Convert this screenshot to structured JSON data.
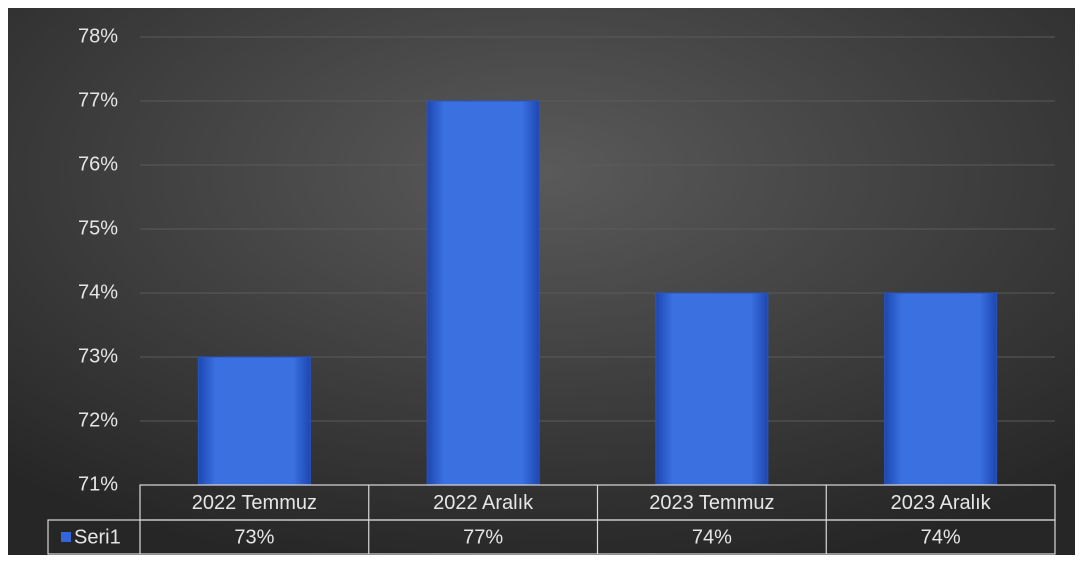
{
  "chart_data": {
    "type": "bar",
    "categories": [
      "2022 Temmuz",
      "2022 Aralık",
      "2023 Temmuz",
      "2023 Aralık"
    ],
    "series": [
      {
        "name": "Seri1",
        "color": "#3366dd",
        "values": [
          73,
          77,
          74,
          74
        ],
        "value_labels": [
          "73%",
          "77%",
          "74%",
          "74%"
        ]
      }
    ],
    "ylim": [
      71,
      78
    ],
    "yticks": [
      {
        "value": 71,
        "label": "71%"
      },
      {
        "value": 72,
        "label": "72%"
      },
      {
        "value": 73,
        "label": "73%"
      },
      {
        "value": 74,
        "label": "74%"
      },
      {
        "value": 75,
        "label": "75%"
      },
      {
        "value": 76,
        "label": "76%"
      },
      {
        "value": 77,
        "label": "77%"
      },
      {
        "value": 78,
        "label": "78%"
      }
    ],
    "grid": true
  }
}
